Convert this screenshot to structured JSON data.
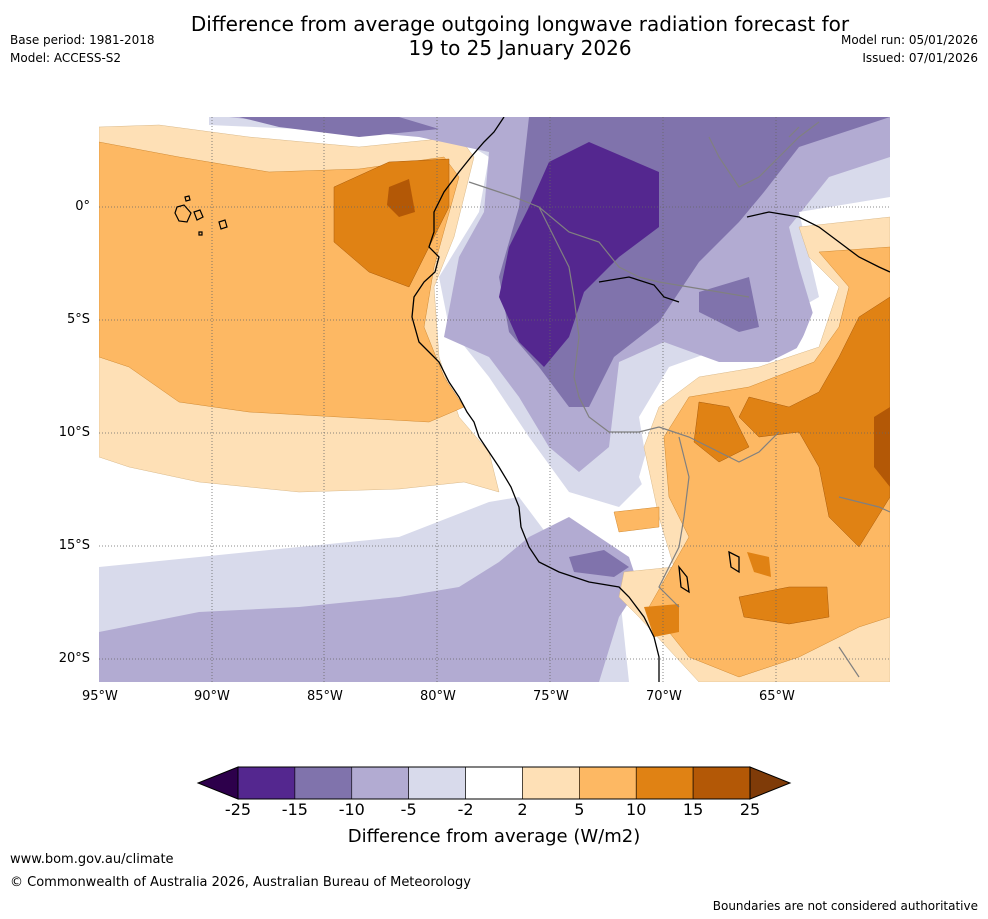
{
  "header": {
    "title_line1": "Difference from average outgoing longwave radiation forecast for",
    "title_line2": "19 to 25 January 2026",
    "base_period": "Base period: 1981-2018",
    "model": "Model: ACCESS-S2",
    "model_run": "Model run: 05/01/2026",
    "issued": "Issued: 07/01/2026"
  },
  "map": {
    "lon_ticks": [
      "95°W",
      "90°W",
      "85°W",
      "80°W",
      "75°W",
      "70°W",
      "65°W"
    ],
    "lat_ticks": [
      "0°",
      "5°S",
      "10°S",
      "15°S",
      "20°S"
    ],
    "colors": {
      "dark_purple": "#54278f",
      "med_purple": "#8073ac",
      "light_purple": "#b2abd2",
      "pale_purple": "#d8daeb",
      "white": "#ffffff",
      "pale_orange": "#fee0b6",
      "light_orange": "#fdb863",
      "orange": "#e08214",
      "dark_orange": "#b35806"
    }
  },
  "colorbar": {
    "colors": [
      "#2d004b",
      "#54278f",
      "#8073ac",
      "#b2abd2",
      "#d8daeb",
      "#ffffff",
      "#fee0b6",
      "#fdb863",
      "#e08214",
      "#b35806",
      "#7f3b08"
    ],
    "labels": [
      "-25",
      "-15",
      "-10",
      "-5",
      "-2",
      "2",
      "5",
      "10",
      "15",
      "25"
    ],
    "title": "Difference from average (W/m2)"
  },
  "footer": {
    "url": "www.bom.gov.au/climate",
    "copyright": "© Commonwealth of Australia 2026, Australian Bureau of Meteorology",
    "disclaimer": "Boundaries are not considered authoritative"
  }
}
